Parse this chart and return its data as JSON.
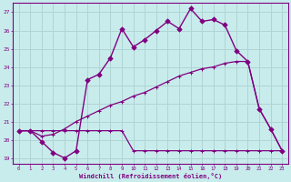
{
  "xlabel": "Windchill (Refroidissement éolien,°C)",
  "bg_color": "#c8ecec",
  "line_color": "#800080",
  "grid_color": "#b0d4d4",
  "xlim": [
    -0.5,
    23.5
  ],
  "ylim": [
    18.7,
    27.5
  ],
  "yticks": [
    19,
    20,
    21,
    22,
    23,
    24,
    25,
    26,
    27
  ],
  "xticks": [
    0,
    1,
    2,
    3,
    4,
    5,
    6,
    7,
    8,
    9,
    10,
    11,
    12,
    13,
    14,
    15,
    16,
    17,
    18,
    19,
    20,
    21,
    22,
    23
  ],
  "line1_x": [
    0,
    1,
    2,
    3,
    4,
    5,
    6,
    7,
    8,
    9,
    10,
    11,
    12,
    13,
    14,
    15,
    16,
    17,
    18,
    19,
    20,
    21,
    22,
    23
  ],
  "line1_y": [
    20.5,
    20.5,
    19.9,
    19.3,
    19.0,
    19.4,
    23.3,
    23.6,
    24.5,
    26.1,
    25.1,
    25.5,
    26.0,
    26.5,
    26.1,
    27.2,
    26.5,
    26.6,
    26.3,
    24.9,
    24.3,
    21.7,
    20.6,
    19.4
  ],
  "line2_x": [
    0,
    1,
    2,
    3,
    4,
    5,
    6,
    7,
    8,
    9,
    10,
    11,
    12,
    13,
    14,
    15,
    16,
    17,
    18,
    19,
    20,
    21,
    22,
    23
  ],
  "line2_y": [
    20.5,
    20.5,
    20.5,
    20.5,
    20.5,
    20.5,
    20.5,
    20.5,
    20.5,
    20.5,
    19.4,
    19.4,
    19.4,
    19.4,
    19.4,
    19.4,
    19.4,
    19.4,
    19.4,
    19.4,
    19.4,
    19.4,
    19.4,
    19.4
  ],
  "line3_x": [
    0,
    1,
    2,
    3,
    4,
    5,
    6,
    7,
    8,
    9,
    10,
    11,
    12,
    13,
    14,
    15,
    16,
    17,
    18,
    19,
    20,
    21,
    22,
    23
  ],
  "line3_y": [
    20.5,
    20.5,
    20.2,
    20.3,
    20.6,
    21.0,
    21.3,
    21.6,
    21.9,
    22.1,
    22.4,
    22.6,
    22.9,
    23.2,
    23.5,
    23.7,
    23.9,
    24.0,
    24.2,
    24.3,
    24.3,
    21.7,
    20.6,
    19.4
  ]
}
